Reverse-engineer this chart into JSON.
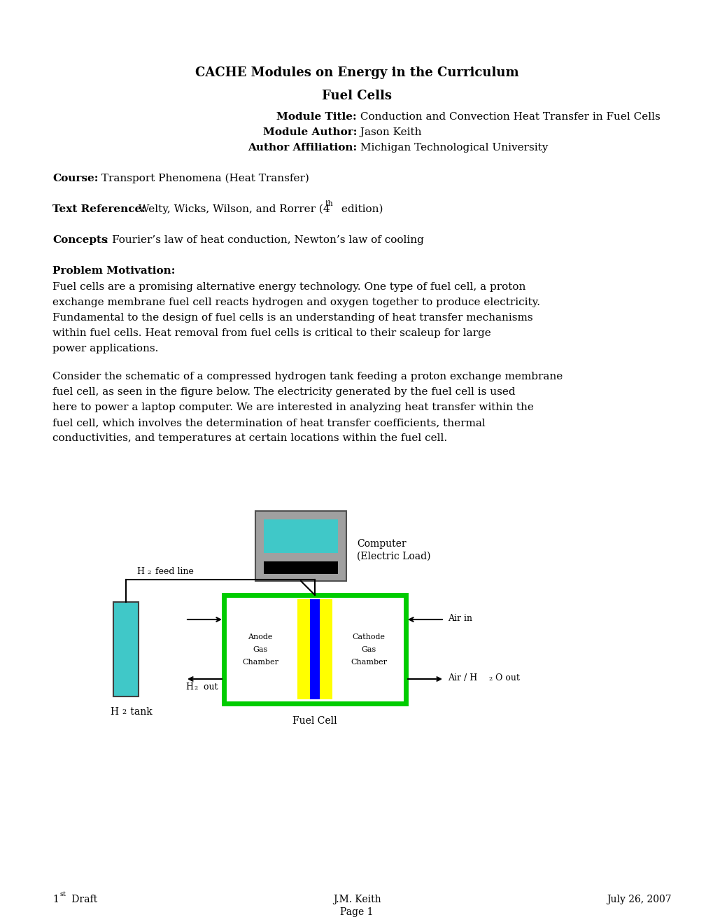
{
  "title1": "CACHE Modules on Energy in the Curriculum",
  "title2": "Fuel Cells",
  "module_title_bold": "Module Title:",
  "module_title_text": " Conduction and Convection Heat Transfer in Fuel Cells",
  "module_author_bold": "Module Author:",
  "module_author_text": " Jason Keith",
  "author_affil_bold": "Author Affiliation:",
  "author_affil_text": " Michigan Technological University",
  "course_bold": "Course:",
  "course_text": " Transport Phenomena (Heat Transfer)",
  "textref_bold": "Text Reference:",
  "textref_text": " Welty, Wicks, Wilson, and Rorrer (4",
  "textref_super": "th",
  "textref_end": " edition)",
  "concepts_bold": "Concepts",
  "concepts_colon": ":",
  "concepts_text": " Fourier’s law of heat conduction, Newton’s law of cooling",
  "prob_motiv_bold": "Problem Motivation:",
  "prob_motiv_para1": "Fuel cells are a promising alternative energy technology. One type of fuel cell, a proton exchange membrane fuel cell reacts hydrogen and oxygen together to produce electricity. Fundamental to the design of fuel cells is an understanding of heat transfer mechanisms within fuel cells. Heat removal from fuel cells is critical to their scaleup for large power applications.",
  "prob_motiv_para2": "Consider the schematic of a compressed hydrogen tank feeding a proton exchange membrane fuel cell, as seen in the figure below. The electricity generated by the fuel cell is used here to power a laptop computer. We are interested in analyzing heat transfer within the fuel cell, which involves the determination of heat transfer coefficients, thermal conductivities, and temperatures at certain locations within the fuel cell.",
  "footer_left1": "1",
  "footer_left_super": "st",
  "footer_left2": " Draft",
  "footer_center1": "J.M. Keith",
  "footer_center2": "Page 1",
  "footer_right": "July 26, 2007",
  "bg_color": "#ffffff",
  "text_color": "#000000",
  "computer_body_color": "#a0a0a0",
  "computer_screen_color": "#40c8c8",
  "computer_button_color": "#000000",
  "tank_color": "#40c8c8",
  "fuel_cell_border_color": "#00cc00",
  "membrane_yellow_color": "#ffff00",
  "membrane_blue_color": "#0000ff"
}
